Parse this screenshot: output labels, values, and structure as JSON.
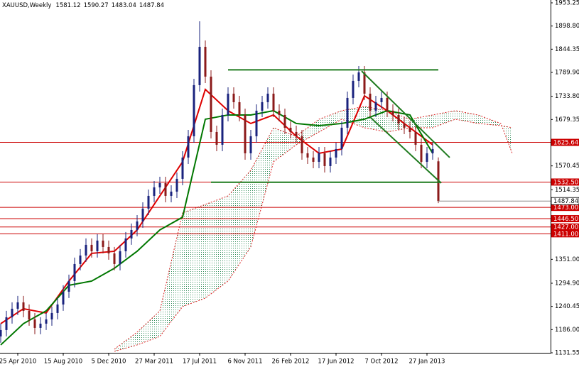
{
  "chart_data": {
    "type": "candlestick",
    "title": "XAUUSD,Weekly",
    "bull_color": "#1a237e",
    "bear_color": "#8b1a1a",
    "x": [
      -6,
      -4,
      -2,
      0,
      2,
      4,
      6,
      8,
      10,
      12,
      14,
      16,
      18,
      20,
      22,
      24,
      26,
      28,
      30,
      32,
      34,
      36,
      38,
      40,
      42,
      44,
      46,
      48,
      50,
      52,
      54,
      56,
      58,
      60,
      62,
      64,
      66,
      68,
      70,
      72,
      74,
      76,
      78,
      80,
      82,
      84,
      86,
      88,
      90,
      92,
      94,
      96,
      98,
      100,
      102,
      104,
      106,
      108,
      110,
      112,
      114,
      116,
      118,
      120,
      122,
      124,
      126,
      128,
      130,
      132,
      134,
      136,
      138,
      140,
      142,
      144,
      146,
      148
    ],
    "open": [
      1170,
      1185,
      1215,
      1235,
      1250,
      1230,
      1210,
      1190,
      1200,
      1210,
      1225,
      1245,
      1275,
      1300,
      1340,
      1360,
      1385,
      1370,
      1395,
      1380,
      1365,
      1340,
      1370,
      1400,
      1420,
      1440,
      1470,
      1500,
      1520,
      1530,
      1500,
      1510,
      1540,
      1590,
      1640,
      1760,
      1850,
      1780,
      1650,
      1620,
      1690,
      1740,
      1720,
      1690,
      1600,
      1640,
      1700,
      1720,
      1740,
      1700,
      1690,
      1660,
      1650,
      1640,
      1600,
      1590,
      1580,
      1600,
      1570,
      1590,
      1610,
      1660,
      1730,
      1770,
      1790,
      1740,
      1700,
      1720,
      1730,
      1700,
      1690,
      1670,
      1660,
      1650,
      1620,
      1580,
      1600,
      1581.12
    ],
    "high": [
      1200,
      1230,
      1250,
      1265,
      1265,
      1245,
      1225,
      1215,
      1225,
      1240,
      1260,
      1290,
      1315,
      1355,
      1375,
      1400,
      1400,
      1410,
      1410,
      1395,
      1380,
      1385,
      1415,
      1435,
      1455,
      1485,
      1515,
      1535,
      1545,
      1545,
      1525,
      1555,
      1605,
      1655,
      1775,
      1910,
      1865,
      1795,
      1665,
      1705,
      1755,
      1755,
      1735,
      1705,
      1655,
      1715,
      1735,
      1755,
      1755,
      1715,
      1705,
      1675,
      1665,
      1655,
      1615,
      1605,
      1615,
      1615,
      1605,
      1625,
      1675,
      1745,
      1785,
      1805,
      1805,
      1755,
      1735,
      1745,
      1745,
      1715,
      1705,
      1685,
      1675,
      1665,
      1635,
      1615,
      1625,
      1590.27
    ],
    "low": [
      1155,
      1170,
      1200,
      1220,
      1215,
      1195,
      1175,
      1175,
      1185,
      1195,
      1210,
      1230,
      1260,
      1285,
      1325,
      1345,
      1355,
      1355,
      1365,
      1350,
      1325,
      1325,
      1355,
      1385,
      1405,
      1425,
      1455,
      1485,
      1505,
      1485,
      1485,
      1495,
      1525,
      1575,
      1625,
      1745,
      1765,
      1635,
      1605,
      1605,
      1675,
      1705,
      1675,
      1585,
      1585,
      1625,
      1685,
      1705,
      1685,
      1675,
      1645,
      1635,
      1625,
      1585,
      1575,
      1565,
      1565,
      1555,
      1555,
      1575,
      1595,
      1645,
      1715,
      1755,
      1725,
      1685,
      1685,
      1705,
      1685,
      1675,
      1655,
      1645,
      1635,
      1605,
      1565,
      1565,
      1585,
      1483.04
    ],
    "close": [
      1185,
      1215,
      1235,
      1250,
      1230,
      1210,
      1190,
      1200,
      1210,
      1225,
      1245,
      1275,
      1300,
      1340,
      1360,
      1385,
      1370,
      1395,
      1380,
      1365,
      1340,
      1370,
      1400,
      1420,
      1440,
      1470,
      1500,
      1520,
      1530,
      1500,
      1510,
      1540,
      1590,
      1640,
      1760,
      1850,
      1780,
      1650,
      1620,
      1690,
      1740,
      1720,
      1690,
      1600,
      1640,
      1700,
      1720,
      1740,
      1700,
      1690,
      1660,
      1650,
      1640,
      1600,
      1590,
      1580,
      1600,
      1570,
      1590,
      1610,
      1660,
      1730,
      1770,
      1790,
      1740,
      1700,
      1720,
      1730,
      1700,
      1690,
      1670,
      1660,
      1650,
      1620,
      1580,
      1600,
      1610,
      1487.84
    ],
    "lines": [
      {
        "color": "#dd0000",
        "x": [
          -6,
          2,
          10,
          18,
          26,
          34,
          42,
          50,
          58,
          66,
          74,
          82,
          90,
          98,
          106,
          114,
          122,
          130,
          138,
          146
        ],
        "values": [
          1200,
          1235,
          1225,
          1300,
          1365,
          1370,
          1420,
          1500,
          1580,
          1750,
          1700,
          1670,
          1690,
          1640,
          1600,
          1610,
          1735,
          1700,
          1660,
          1620
        ]
      },
      {
        "color": "#007700",
        "x": [
          -6,
          2,
          10,
          18,
          26,
          34,
          42,
          50,
          58,
          66,
          74,
          82,
          90,
          98,
          106,
          114,
          122,
          130,
          138,
          146
        ],
        "values": [
          1150,
          1200,
          1230,
          1290,
          1300,
          1330,
          1370,
          1420,
          1450,
          1680,
          1690,
          1690,
          1700,
          1670,
          1665,
          1670,
          1680,
          1700,
          1690,
          1600
        ]
      }
    ],
    "cloud": {
      "color": "#2e8b57",
      "edge_color": "#dd2222",
      "x": [
        34,
        42,
        50,
        58,
        66,
        74,
        82,
        90,
        98,
        106,
        114,
        122,
        130,
        138,
        146,
        154,
        162,
        170,
        174
      ],
      "span_a": [
        1140,
        1180,
        1230,
        1460,
        1480,
        1500,
        1560,
        1660,
        1640,
        1680,
        1700,
        1710,
        1700,
        1680,
        1690,
        1700,
        1690,
        1670,
        1600
      ],
      "span_b": [
        1135,
        1150,
        1170,
        1240,
        1260,
        1300,
        1380,
        1580,
        1620,
        1650,
        1680,
        1660,
        1650,
        1660,
        1660,
        1680,
        1670,
        1665,
        1660
      ]
    },
    "levels": [
      1625.64,
      {
        "value": 1532.5,
        "label": "1532.50"
      },
      {
        "value": 1473,
        "label": "1473.00"
      },
      {
        "value": 1446.5,
        "label": "1446.50"
      },
      {
        "value": 1427,
        "label": "1427.00"
      },
      {
        "value": 1411,
        "label": "1411.00"
      }
    ],
    "level_color": "#cc0000",
    "trend_color": "#1e7a1e",
    "trendlines": [
      {
        "x": [
          74,
          148
        ],
        "values": [
          1796,
          1796
        ]
      },
      {
        "x": [
          68,
          149
        ],
        "values": [
          1532,
          1532
        ]
      },
      {
        "x": [
          121,
          152
        ],
        "values": [
          1793,
          1590
        ]
      },
      {
        "x": [
          124,
          149
        ],
        "values": [
          1685,
          1530
        ]
      }
    ],
    "xlim": [
      -6.25,
      187.5
    ],
    "ylim": [
      1131.55,
      1953.25
    ],
    "xticks": [
      {
        "value": 0,
        "label": "25 Apr 2010"
      },
      {
        "value": 16,
        "label": "15 Aug 2010"
      },
      {
        "value": 32,
        "label": "5 Dec 2010"
      },
      {
        "value": 48,
        "label": "27 Mar 2011"
      },
      {
        "value": 64,
        "label": "17 Jul 2011"
      },
      {
        "value": 80,
        "label": "6 Nov 2011"
      },
      {
        "value": 96,
        "label": "26 Feb 2012"
      },
      {
        "value": 112,
        "label": "17 Jun 2012"
      },
      {
        "value": 128,
        "label": "7 Oct 2012"
      },
      {
        "value": 144,
        "label": "27 Jan 2013"
      }
    ],
    "yticks": [
      1953.25,
      {
        "value": 1898.8,
        "label": "1898.80"
      },
      1844.35,
      {
        "value": 1789.9,
        "label": "1789.90"
      },
      {
        "value": 1733.8,
        "label": "1733.80"
      },
      1679.35,
      1570.45,
      1514.35,
      {
        "value": 1351,
        "label": "1351.00"
      },
      {
        "value": 1294.9,
        "label": "1294.90"
      },
      1240.45,
      {
        "value": 1186,
        "label": "1186.00"
      },
      1131.55
    ]
  }
}
